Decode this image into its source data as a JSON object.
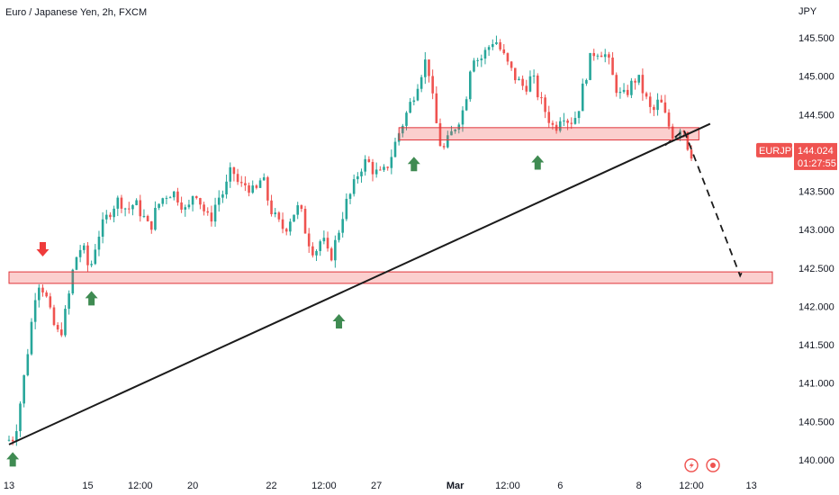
{
  "header": {
    "title": "Euro / Japanese Yen, 2h, FXCM",
    "currency": "JPY"
  },
  "price_badge": {
    "symbol": "EURJPY",
    "price": "144.024",
    "countdown": "01:27:55"
  },
  "icons": [
    "lightning-icon",
    "record-icon"
  ],
  "colors": {
    "up": "#26a69a",
    "down": "#ef5350",
    "zone_fill": "rgba(239,83,80,0.28)",
    "zone_stroke": "#e0343a",
    "trendline": "#1b1b1b",
    "arrow_up": "#3f8b52",
    "arrow_down": "#ef3b3b",
    "badge": "#ef5350",
    "dashed": "#1b1b1b"
  },
  "chart_data": {
    "type": "candlestick",
    "title": "Euro / Japanese Yen, 2h, FXCM",
    "ylabel": "JPY",
    "ylim": [
      139.8,
      145.9
    ],
    "y_ticks": [
      "140.000",
      "140.500",
      "141.000",
      "141.500",
      "142.000",
      "142.500",
      "143.000",
      "143.500",
      "144.000",
      "144.500",
      "145.000",
      "145.500"
    ],
    "x_ticks": [
      "13",
      "15",
      "12:00",
      "20",
      "22",
      "12:00",
      "27",
      "Mar",
      "12:00",
      "6",
      "8",
      "12:00",
      "13"
    ],
    "x_tick_index": [
      0,
      21,
      35,
      49,
      70,
      84,
      98,
      119,
      133,
      147,
      168,
      182,
      198
    ],
    "x_total": 206,
    "last_price": 144.024,
    "price_path": [
      [
        0,
        140.25
      ],
      [
        2,
        140.3
      ],
      [
        4,
        140.9
      ],
      [
        6,
        141.6
      ],
      [
        8,
        142.35
      ],
      [
        10,
        142.2
      ],
      [
        12,
        141.8
      ],
      [
        14,
        141.6
      ],
      [
        16,
        142.0
      ],
      [
        18,
        142.6
      ],
      [
        20,
        142.8
      ],
      [
        22,
        142.45
      ],
      [
        24,
        142.9
      ],
      [
        26,
        143.1
      ],
      [
        28,
        143.3
      ],
      [
        30,
        143.4
      ],
      [
        32,
        143.25
      ],
      [
        34,
        143.35
      ],
      [
        36,
        143.2
      ],
      [
        38,
        143.0
      ],
      [
        40,
        143.3
      ],
      [
        42,
        143.45
      ],
      [
        44,
        143.5
      ],
      [
        46,
        143.4
      ],
      [
        48,
        143.2
      ],
      [
        50,
        143.55
      ],
      [
        52,
        143.3
      ],
      [
        54,
        143.1
      ],
      [
        56,
        143.4
      ],
      [
        58,
        143.5
      ],
      [
        60,
        143.8
      ],
      [
        62,
        143.55
      ],
      [
        64,
        143.6
      ],
      [
        66,
        143.45
      ],
      [
        68,
        143.7
      ],
      [
        70,
        143.3
      ],
      [
        72,
        143.1
      ],
      [
        74,
        143.0
      ],
      [
        76,
        143.2
      ],
      [
        78,
        143.3
      ],
      [
        80,
        142.9
      ],
      [
        82,
        142.7
      ],
      [
        84,
        142.9
      ],
      [
        86,
        142.6
      ],
      [
        88,
        142.9
      ],
      [
        90,
        143.3
      ],
      [
        92,
        143.5
      ],
      [
        94,
        143.8
      ],
      [
        96,
        143.9
      ],
      [
        98,
        143.75
      ],
      [
        100,
        143.7
      ],
      [
        102,
        143.9
      ],
      [
        104,
        144.2
      ],
      [
        106,
        144.45
      ],
      [
        108,
        144.7
      ],
      [
        110,
        145.0
      ],
      [
        112,
        145.25
      ],
      [
        114,
        144.5
      ],
      [
        116,
        144.0
      ],
      [
        118,
        144.2
      ],
      [
        120,
        144.4
      ],
      [
        122,
        144.6
      ],
      [
        124,
        145.3
      ],
      [
        126,
        145.2
      ],
      [
        128,
        145.35
      ],
      [
        130,
        145.5
      ],
      [
        132,
        145.3
      ],
      [
        134,
        145.1
      ],
      [
        136,
        144.95
      ],
      [
        138,
        144.85
      ],
      [
        140,
        145.0
      ],
      [
        142,
        144.7
      ],
      [
        144,
        144.5
      ],
      [
        146,
        144.3
      ],
      [
        148,
        144.55
      ],
      [
        150,
        144.4
      ],
      [
        152,
        144.5
      ],
      [
        154,
        144.95
      ],
      [
        156,
        145.3
      ],
      [
        158,
        145.35
      ],
      [
        160,
        145.25
      ],
      [
        162,
        144.9
      ],
      [
        164,
        144.7
      ],
      [
        166,
        144.85
      ],
      [
        168,
        145.0
      ],
      [
        170,
        144.75
      ],
      [
        172,
        144.5
      ],
      [
        174,
        144.7
      ],
      [
        176,
        144.4
      ],
      [
        178,
        144.2
      ],
      [
        180,
        144.4
      ],
      [
        182,
        144.0
      ]
    ],
    "zones": [
      {
        "x0": 0,
        "x1": 206,
        "y_low": 142.3,
        "y_high": 142.45
      },
      {
        "x0": 104,
        "x1": 184,
        "y_low": 144.17,
        "y_high": 144.33
      }
    ],
    "trendline": {
      "x0": 0,
      "y0": 140.2,
      "x1": 187,
      "y1": 144.38
    },
    "projection": [
      [
        175,
        144.1
      ],
      [
        180,
        144.3
      ],
      [
        195,
        142.4
      ],
      [
        196,
        142.5
      ]
    ],
    "up_arrows": [
      [
        1,
        140.1
      ],
      [
        22,
        142.2
      ],
      [
        88,
        141.9
      ],
      [
        108,
        143.95
      ],
      [
        141,
        143.97
      ]
    ],
    "down_arrows": [
      [
        9,
        142.65
      ]
    ]
  }
}
